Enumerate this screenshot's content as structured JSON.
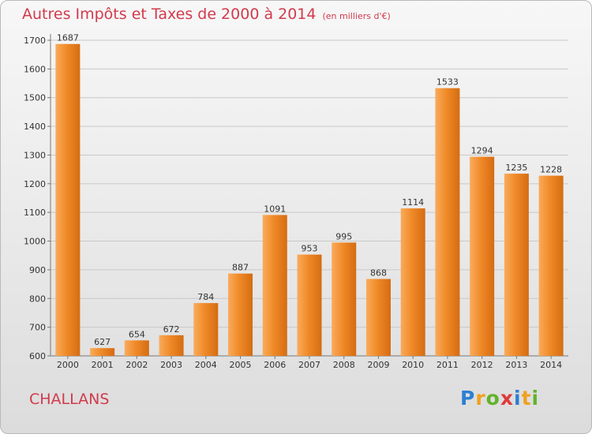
{
  "title": "Autres Impôts et Taxes de 2000 à 2014",
  "subtitle": "(en milliers d'€)",
  "city": "CHALLANS",
  "logo": {
    "letters": [
      "P",
      "r",
      "o",
      "x",
      "i",
      "t",
      "i"
    ],
    "colors": [
      "#2c7fd2",
      "#f0a020",
      "#62b32c",
      "#e03a3a",
      "#2c7fd2",
      "#f0a020",
      "#62b32c"
    ]
  },
  "colors": {
    "bar": "#f08a28",
    "bar_light": "#f9ab5c",
    "bar_dark": "#d56c12",
    "title": "#d23a4d"
  },
  "chart_data": {
    "type": "bar",
    "title": "Autres Impôts et Taxes de 2000 à 2014",
    "subtitle": "(en milliers d'€)",
    "categories": [
      "2000",
      "2001",
      "2002",
      "2003",
      "2004",
      "2005",
      "2006",
      "2007",
      "2008",
      "2009",
      "2010",
      "2011",
      "2012",
      "2013",
      "2014"
    ],
    "values": [
      1687,
      627,
      654,
      672,
      784,
      887,
      1091,
      953,
      995,
      868,
      1114,
      1533,
      1294,
      1235,
      1228
    ],
    "ylim": [
      600,
      1700
    ],
    "yticks": [
      600,
      700,
      800,
      900,
      1000,
      1100,
      1200,
      1300,
      1400,
      1500,
      1600,
      1700
    ],
    "grid": true,
    "xlabel": "",
    "ylabel": ""
  }
}
